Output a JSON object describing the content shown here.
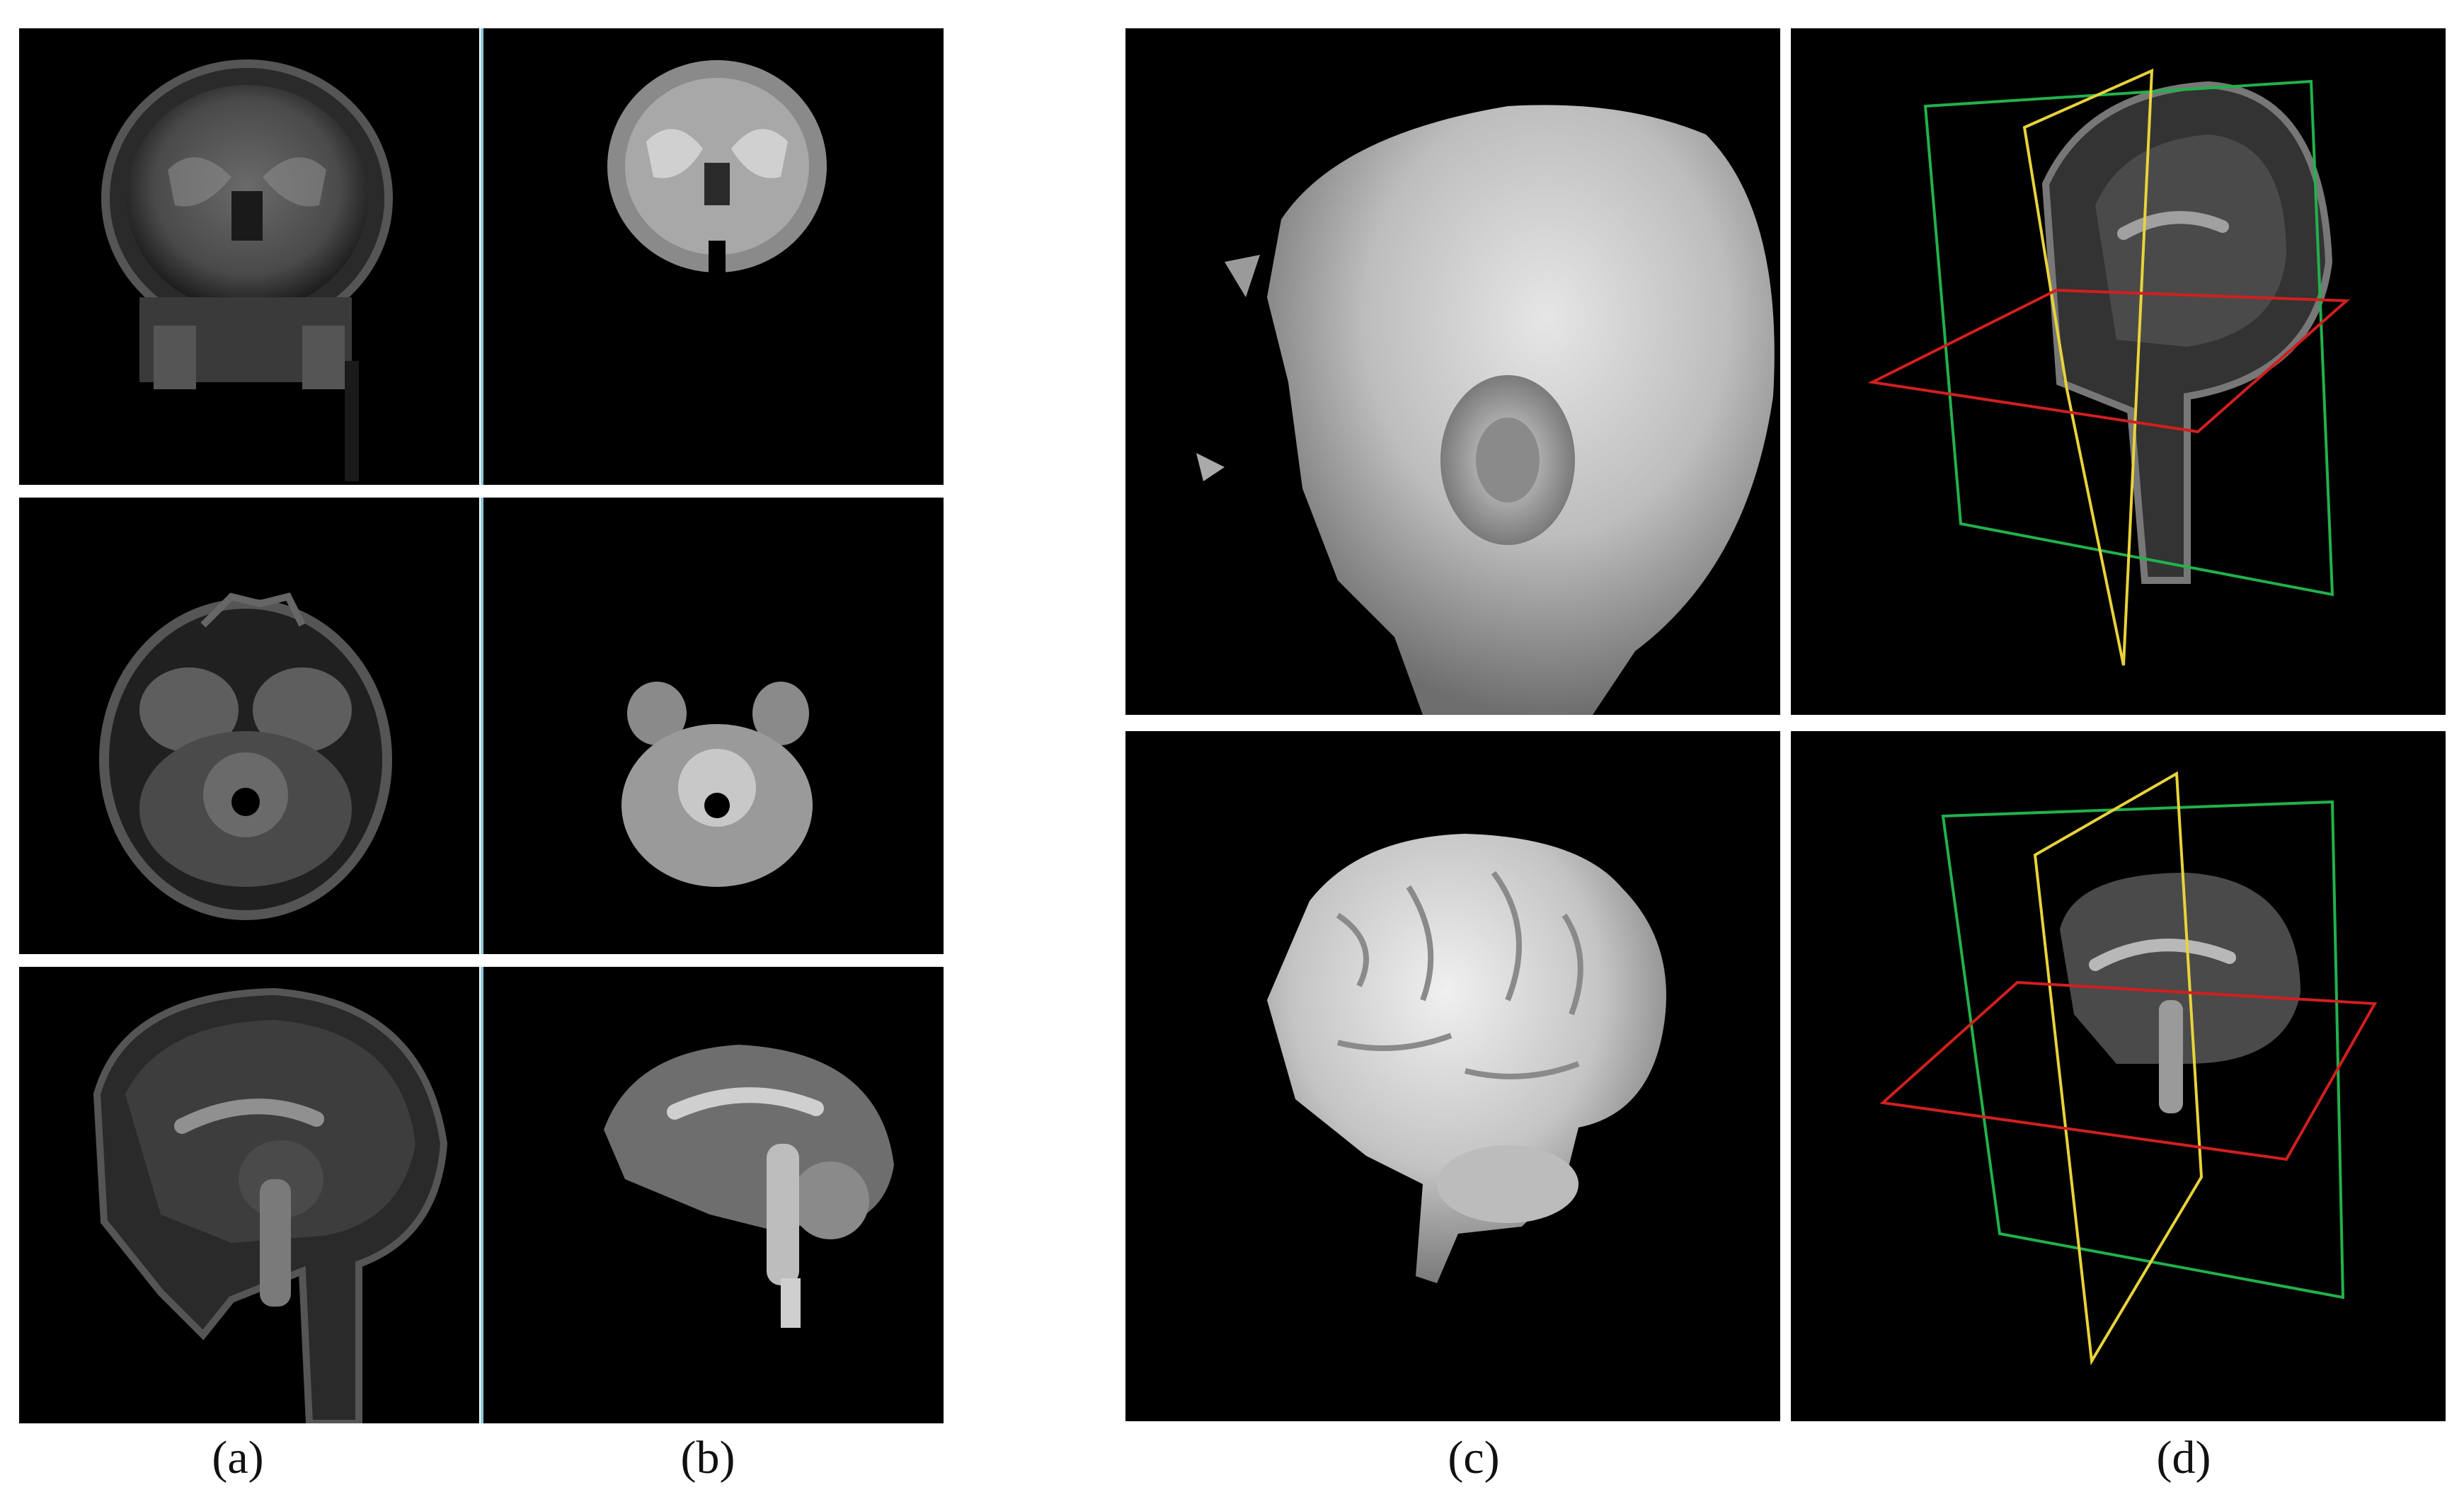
{
  "figure": {
    "captions": {
      "a": "(a)",
      "b": "(b)",
      "c": "(c)",
      "d": "(d)"
    },
    "panels": {
      "a": [
        "coronal-mri-slice",
        "axial-mri-slice",
        "sagittal-mri-slice"
      ],
      "b": [
        "coronal-skull-stripped-slice",
        "axial-skull-stripped-slice",
        "sagittal-skull-stripped-slice"
      ],
      "c": [
        "head-surface-render",
        "brain-surface-render"
      ],
      "d": [
        "head-orthogonal-planes-view",
        "brain-orthogonal-planes-view"
      ]
    },
    "colors": {
      "background": "#000000",
      "separator": "#8fc8dc",
      "plane_green": "#22b14c",
      "plane_yellow": "#e8d33a",
      "plane_red": "#d11f1f"
    }
  }
}
